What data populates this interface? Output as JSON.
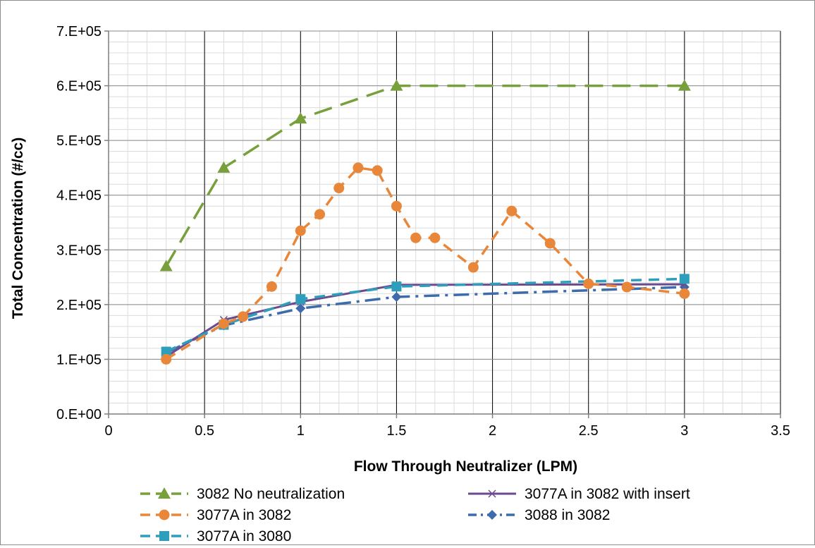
{
  "chart_data": {
    "type": "line",
    "xlabel": "Flow Through Neutralizer (LPM)",
    "ylabel": "Total Concentration (#/cc)",
    "xlim": [
      0,
      3.5
    ],
    "ylim": [
      0,
      700000
    ],
    "x_ticks": [
      0,
      0.5,
      1,
      1.5,
      2,
      2.5,
      3,
      3.5
    ],
    "x_tick_labels": [
      "0",
      "0.5",
      "1",
      "1.5",
      "2",
      "2.5",
      "3",
      "3.5"
    ],
    "y_ticks": [
      0,
      100000,
      200000,
      300000,
      400000,
      500000,
      600000,
      700000
    ],
    "y_tick_labels": [
      "0.E+00",
      "1.E+05",
      "2.E+05",
      "3.E+05",
      "4.E+05",
      "5.E+05",
      "6.E+05",
      "7.E+05"
    ],
    "grid": true,
    "minor_grid": true,
    "legend_position": "bottom",
    "series": [
      {
        "name": "3082 No neutralization",
        "color": "#77a03c",
        "marker": "triangle",
        "line_style": "long-dash",
        "x": [
          0.3,
          0.6,
          1.0,
          1.5,
          3.0
        ],
        "values": [
          270000,
          450000,
          540000,
          600000,
          600000
        ]
      },
      {
        "name": "3077A in 3082",
        "color": "#e8873a",
        "marker": "circle",
        "line_style": "dash",
        "x": [
          0.3,
          0.6,
          0.7,
          0.85,
          1.0,
          1.1,
          1.2,
          1.3,
          1.4,
          1.5,
          1.6,
          1.7,
          1.9,
          2.1,
          2.3,
          2.5,
          2.7,
          3.0
        ],
        "values": [
          100000,
          165000,
          178000,
          233000,
          335000,
          365000,
          413000,
          450000,
          445000,
          380000,
          322000,
          322000,
          268000,
          371000,
          312000,
          238000,
          232000,
          220000
        ]
      },
      {
        "name": "3077A in 3080",
        "color": "#2e9ebd",
        "marker": "square",
        "line_style": "dash",
        "x": [
          0.3,
          0.6,
          1.0,
          1.5,
          3.0
        ],
        "values": [
          114000,
          163000,
          210000,
          233000,
          247000
        ]
      },
      {
        "name": "3077A in 3082 with insert",
        "color": "#6d4a8e",
        "marker": "x",
        "line_style": "solid",
        "x": [
          0.3,
          0.6,
          1.0,
          1.5,
          3.0
        ],
        "values": [
          105000,
          172000,
          205000,
          236000,
          237000
        ]
      },
      {
        "name": "3088 in 3082",
        "color": "#3d6bab",
        "marker": "diamond",
        "line_style": "dash-dot",
        "x": [
          0.3,
          0.6,
          1.0,
          1.5,
          3.0
        ],
        "values": [
          112000,
          162000,
          193000,
          214000,
          232000
        ]
      }
    ]
  }
}
